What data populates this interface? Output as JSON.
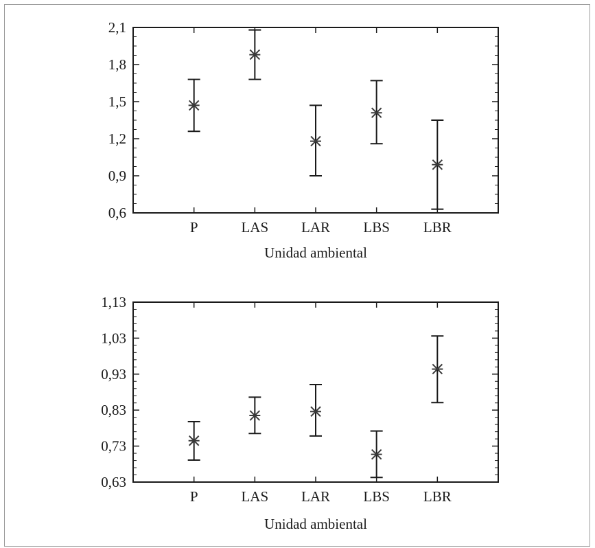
{
  "chart_data": [
    {
      "type": "scatter",
      "subtype": "means-with-error-bars",
      "title": "",
      "xlabel": "Unidad ambiental",
      "ylabel": "",
      "categories": [
        "P",
        "LAS",
        "LAR",
        "LBS",
        "LBR"
      ],
      "mean": [
        1.47,
        1.88,
        1.18,
        1.41,
        0.99
      ],
      "lower": [
        1.26,
        1.68,
        0.9,
        1.16,
        0.63
      ],
      "upper": [
        1.68,
        2.08,
        1.47,
        1.67,
        1.35
      ],
      "ylim": [
        0.6,
        2.1
      ],
      "yticks": [
        "2,1",
        "1,8",
        "1,5",
        "1,2",
        "0,9",
        "0,6"
      ],
      "ytick_values": [
        2.1,
        1.8,
        1.5,
        1.2,
        0.9,
        0.6
      ],
      "grid": false,
      "legend": "none"
    },
    {
      "type": "scatter",
      "subtype": "means-with-error-bars",
      "title": "",
      "xlabel": "Unidad ambiental",
      "ylabel": "",
      "categories": [
        "P",
        "LAS",
        "LAR",
        "LBS",
        "LBR"
      ],
      "mean": [
        0.745,
        0.815,
        0.826,
        0.707,
        0.944
      ],
      "lower": [
        0.691,
        0.765,
        0.758,
        0.643,
        0.851
      ],
      "upper": [
        0.798,
        0.866,
        0.901,
        0.772,
        1.036
      ],
      "ylim": [
        0.63,
        1.13
      ],
      "yticks": [
        "1,13",
        "1,03",
        "0,93",
        "0,83",
        "0,73",
        "0,63"
      ],
      "ytick_values": [
        1.13,
        1.03,
        0.93,
        0.83,
        0.73,
        0.63
      ],
      "grid": false,
      "legend": "none"
    }
  ],
  "colors": {
    "axis": "#1a1a1a",
    "marker": "#3a3a3a",
    "frame": "#9a9a9a"
  }
}
